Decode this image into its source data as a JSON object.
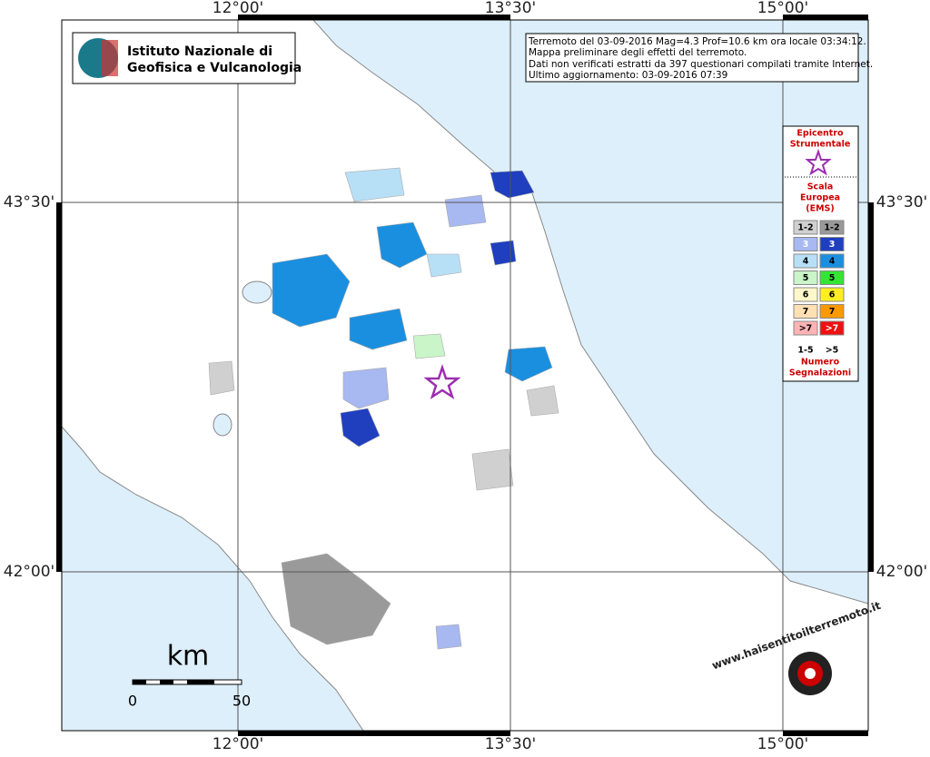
{
  "map": {
    "x_labels": [
      "12°00'",
      "13°30'",
      "15°00'"
    ],
    "y_labels": [
      "43°30'",
      "42°00'"
    ],
    "logo": [
      "Istituto Nazionale di",
      "Geofisica e Vulcanologia"
    ],
    "info": [
      "Terremoto del 03-09-2016 Mag=4.3 Prof=10.6 km ora locale 03:34:12.",
      "Mappa preliminare degli effetti del terremoto.",
      "Dati non verificati estratti da 397 questionari compilati tramite Internet.",
      "Ultimo aggiornamento: 03-09-2016 07:39"
    ],
    "legend": {
      "epicenter": [
        "Epicentro",
        "Strumentale"
      ],
      "scale_title": [
        "Scala",
        "Europea",
        "(EMS)"
      ],
      "rows": [
        [
          "1-2",
          "1-2"
        ],
        [
          "3",
          "3"
        ],
        [
          "4",
          "4"
        ],
        [
          "5",
          "5"
        ],
        [
          "6",
          "6"
        ],
        [
          "7",
          "7"
        ],
        [
          ">7",
          ">7"
        ]
      ],
      "count_labels": [
        "1-5",
        ">5"
      ],
      "count_title": [
        "Numero",
        "Segnalazioni"
      ]
    },
    "scale_bar": {
      "unit": "km",
      "labels": [
        "0",
        "50"
      ]
    },
    "site_logo": "www.haisentitoilterremoto.it"
  }
}
